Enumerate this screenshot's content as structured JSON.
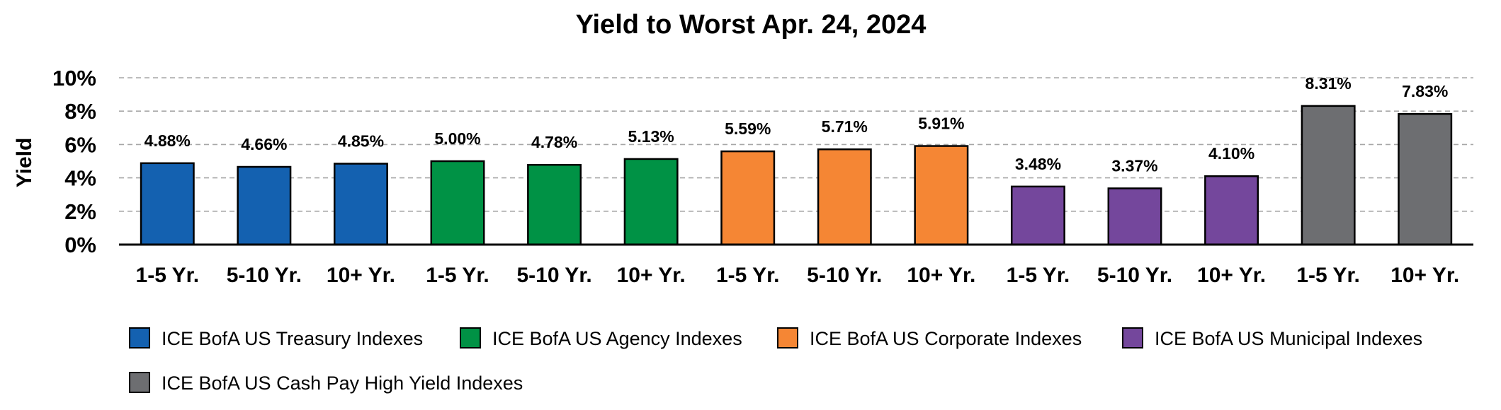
{
  "chart_data": {
    "type": "bar",
    "title": "Yield to Worst Apr. 24, 2024",
    "ylabel": "Yield",
    "ylim": [
      0,
      10
    ],
    "yticks": [
      "0%",
      "2%",
      "4%",
      "6%",
      "8%",
      "10%"
    ],
    "grid": true,
    "legend_position": "bottom",
    "series": [
      {
        "name": "ICE BofA US Treasury Indexes",
        "color": "#1461b0",
        "categories": [
          "1-5 Yr.",
          "5-10 Yr.",
          "10+ Yr."
        ],
        "values": [
          4.88,
          4.66,
          4.85
        ],
        "labels": [
          "4.88%",
          "4.66%",
          "4.85%"
        ]
      },
      {
        "name": "ICE BofA US Agency Indexes",
        "color": "#009245",
        "categories": [
          "1-5 Yr.",
          "5-10 Yr.",
          "10+ Yr."
        ],
        "values": [
          5.0,
          4.78,
          5.13
        ],
        "labels": [
          "5.00%",
          "4.78%",
          "5.13%"
        ]
      },
      {
        "name": "ICE BofA US Corporate Indexes",
        "color": "#f58634",
        "categories": [
          "1-5 Yr.",
          "5-10 Yr.",
          "10+ Yr."
        ],
        "values": [
          5.59,
          5.71,
          5.91
        ],
        "labels": [
          "5.59%",
          "5.71%",
          "5.91%"
        ]
      },
      {
        "name": "ICE BofA US Municipal Indexes",
        "color": "#74479c",
        "categories": [
          "1-5 Yr.",
          "5-10 Yr.",
          "10+ Yr."
        ],
        "values": [
          3.48,
          3.37,
          4.1
        ],
        "labels": [
          "3.48%",
          "3.37%",
          "4.10%"
        ]
      },
      {
        "name": "ICE BofA US Cash Pay High Yield Indexes",
        "color": "#6d6e71",
        "categories": [
          "1-5 Yr.",
          "10+ Yr."
        ],
        "values": [
          8.31,
          7.83
        ],
        "labels": [
          "8.31%",
          "7.83%"
        ]
      }
    ]
  }
}
